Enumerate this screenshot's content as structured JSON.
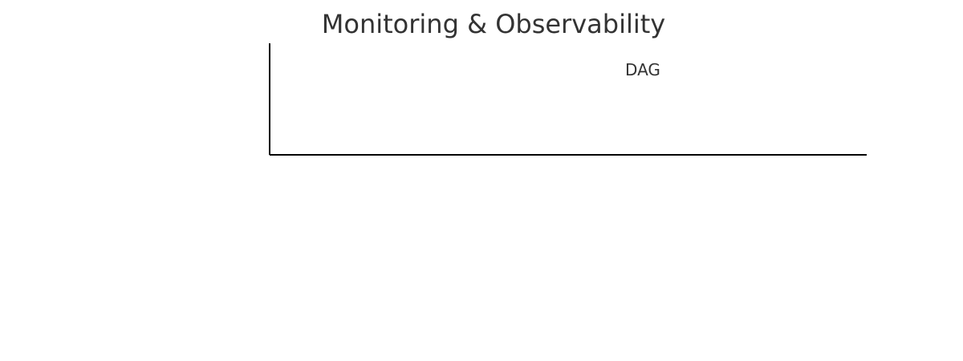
{
  "chart_data": {
    "type": "bar",
    "title": "Monitoring & Observability",
    "categories": [
      "DAG"
    ],
    "values": [
      0
    ],
    "xlabel": "",
    "ylabel": "",
    "grid": false,
    "legend": "none"
  },
  "colors": {
    "text": "#333333",
    "axis": "#000000",
    "background": "#ffffff"
  }
}
